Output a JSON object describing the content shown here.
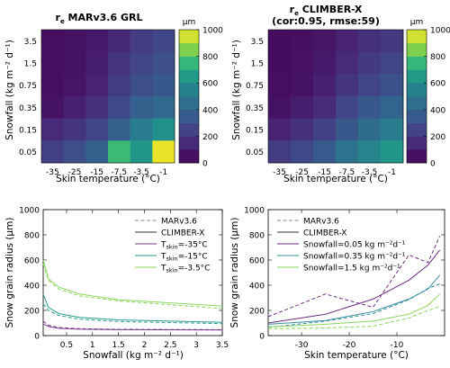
{
  "chart_data": [
    {
      "type": "heatmap",
      "title": "r",
      "title_sub": "e",
      "title_rest": " MARv3.6 GRL",
      "xlabel": "Skin temperature (°C)",
      "ylabel": "Snowfall (kg m⁻² d⁻¹)",
      "x_ticks": [
        "-35",
        "-25",
        "-15",
        "-7.5",
        "-3.5",
        "-1"
      ],
      "y_ticks": [
        "3.5",
        "1.5",
        "0.75",
        "0.35",
        "0.15",
        "0.05"
      ],
      "colorbar": {
        "unit": "μm",
        "ticks": [
          0,
          200,
          400,
          600,
          800,
          1000
        ],
        "range": [
          0,
          1000
        ]
      },
      "values": [
        [
          50,
          60,
          80,
          140,
          220,
          260
        ],
        [
          50,
          60,
          100,
          190,
          250,
          300
        ],
        [
          50,
          70,
          120,
          220,
          300,
          340
        ],
        [
          60,
          110,
          170,
          280,
          380,
          420
        ],
        [
          150,
          190,
          250,
          380,
          520,
          620
        ],
        [
          230,
          300,
          380,
          760,
          640,
          980
        ]
      ]
    },
    {
      "type": "heatmap",
      "title": "r",
      "title_sub": "e",
      "title_rest": " CLIMBER-X",
      "title_line2": "(cor:0.95, rmse:59)",
      "xlabel": "Skin temperature (°C)",
      "ylabel": "Snowfall (kg m⁻² d⁻¹)",
      "x_ticks": [
        "-35",
        "-25",
        "-15",
        "-7.5",
        "-3.5",
        "-1"
      ],
      "y_ticks": [
        "3.5",
        "1.5",
        "0.75",
        "0.35",
        "0.15",
        "0.05"
      ],
      "colorbar": {
        "unit": "μm",
        "ticks": [
          0,
          200,
          400,
          600,
          800,
          1000
        ],
        "range": [
          0,
          1000
        ]
      },
      "values": [
        [
          40,
          50,
          70,
          120,
          170,
          210
        ],
        [
          40,
          55,
          85,
          150,
          210,
          250
        ],
        [
          45,
          60,
          110,
          190,
          260,
          310
        ],
        [
          60,
          100,
          150,
          260,
          340,
          400
        ],
        [
          120,
          170,
          240,
          340,
          440,
          520
        ],
        [
          220,
          280,
          350,
          480,
          560,
          640
        ]
      ]
    },
    {
      "type": "line",
      "xlabel": "Snowfall (kg m⁻² d⁻¹)",
      "ylabel": "Snow grain radius (μm)",
      "xlim": [
        0.05,
        3.5
      ],
      "ylim": [
        0,
        1000
      ],
      "x_ticks": [
        "0.5",
        "1",
        "1.5",
        "2",
        "2.5",
        "3",
        "3.5"
      ],
      "y_ticks": [
        "0",
        "200",
        "400",
        "600",
        "800",
        "1000"
      ],
      "legend": {
        "style_entries": [
          "MARv3.6",
          "CLIMBER-X"
        ],
        "series_prefix": "T",
        "series_sub": "skin",
        "series_entries": [
          "=-35°C",
          "=-15°C",
          "=-3.5°C"
        ]
      },
      "series": [
        {
          "name": "=-35°C",
          "color": "#7a3d8a",
          "style": "mar",
          "x": [
            0.05,
            0.15,
            0.35,
            0.75,
            1.5,
            3.5
          ],
          "y": [
            115,
            82,
            64,
            55,
            50,
            47
          ]
        },
        {
          "name": "=-35°C",
          "color": "#7a3d8a",
          "style": "climber",
          "x": [
            0.05,
            0.15,
            0.35,
            0.75,
            1.5,
            3.5
          ],
          "y": [
            92,
            72,
            58,
            51,
            47,
            45
          ]
        },
        {
          "name": "=-15°C",
          "color": "#2a9a8a",
          "style": "mar",
          "x": [
            0.05,
            0.15,
            0.35,
            0.75,
            1.5,
            3.5
          ],
          "y": [
            250,
            200,
            160,
            130,
            112,
            95
          ]
        },
        {
          "name": "=-15°C",
          "color": "#2a9a8a",
          "style": "climber",
          "x": [
            0.05,
            0.15,
            0.35,
            0.75,
            1.5,
            3.5
          ],
          "y": [
            330,
            225,
            175,
            145,
            125,
            105
          ]
        },
        {
          "name": "=-3.5°C",
          "color": "#8ad65a",
          "style": "mar",
          "x": [
            0.05,
            0.15,
            0.35,
            0.75,
            1.5,
            3.5
          ],
          "y": [
            570,
            440,
            370,
            315,
            275,
            215
          ]
        },
        {
          "name": "=-3.5°C",
          "color": "#8ad65a",
          "style": "climber",
          "x": [
            0.05,
            0.15,
            0.35,
            0.75,
            1.5,
            3.5
          ],
          "y": [
            600,
            450,
            385,
            330,
            285,
            235
          ]
        }
      ]
    },
    {
      "type": "line",
      "xlabel": "Skin temperature (°C)",
      "ylabel": "Snow grain radius (μm)",
      "xlim": [
        -37,
        0
      ],
      "ylim": [
        0,
        1000
      ],
      "x_ticks": [
        "-30",
        "-20",
        "-10"
      ],
      "x_tick_values": [
        -30,
        -20,
        -10
      ],
      "y_ticks": [
        "0",
        "200",
        "400",
        "600",
        "800",
        "1000"
      ],
      "legend": {
        "style_entries": [
          "MARv3.6",
          "CLIMBER-X"
        ],
        "series_prefix": "Snowfall",
        "series_entries": [
          "=0.05 kg m⁻²d⁻¹",
          "=0.35 kg m⁻²d⁻¹",
          "=1.5 kg m⁻²d⁻¹"
        ]
      },
      "series": [
        {
          "name": "=0.05 kg m⁻²d⁻¹",
          "color": "#6a3080",
          "style": "mar",
          "x": [
            -37,
            -25,
            -15,
            -7.5,
            -3.5,
            -1
          ],
          "y": [
            150,
            330,
            225,
            640,
            580,
            790
          ]
        },
        {
          "name": "=0.05 kg m⁻²d⁻¹",
          "color": "#6a3080",
          "style": "climber",
          "x": [
            -37,
            -25,
            -15,
            -7.5,
            -3.5,
            -1
          ],
          "y": [
            100,
            170,
            290,
            440,
            560,
            680
          ]
        },
        {
          "name": "=0.35 kg m⁻²d⁻¹",
          "color": "#3a90a0",
          "style": "mar",
          "x": [
            -37,
            -25,
            -15,
            -7.5,
            -3.5,
            -1
          ],
          "y": [
            65,
            115,
            175,
            285,
            375,
            410
          ]
        },
        {
          "name": "=0.35 kg m⁻²d⁻¹",
          "color": "#3a90a0",
          "style": "climber",
          "x": [
            -37,
            -25,
            -15,
            -7.5,
            -3.5,
            -1
          ],
          "y": [
            90,
            120,
            190,
            290,
            370,
            480
          ]
        },
        {
          "name": "=1.5 kg m⁻²d⁻¹",
          "color": "#8ad65a",
          "style": "mar",
          "x": [
            -37,
            -25,
            -15,
            -7.5,
            -3.5,
            -1
          ],
          "y": [
            55,
            60,
            75,
            140,
            200,
            230
          ]
        },
        {
          "name": "=1.5 kg m⁻²d⁻¹",
          "color": "#8ad65a",
          "style": "climber",
          "x": [
            -37,
            -25,
            -15,
            -7.5,
            -3.5,
            -1
          ],
          "y": [
            70,
            90,
            115,
            170,
            240,
            330
          ]
        }
      ]
    }
  ]
}
